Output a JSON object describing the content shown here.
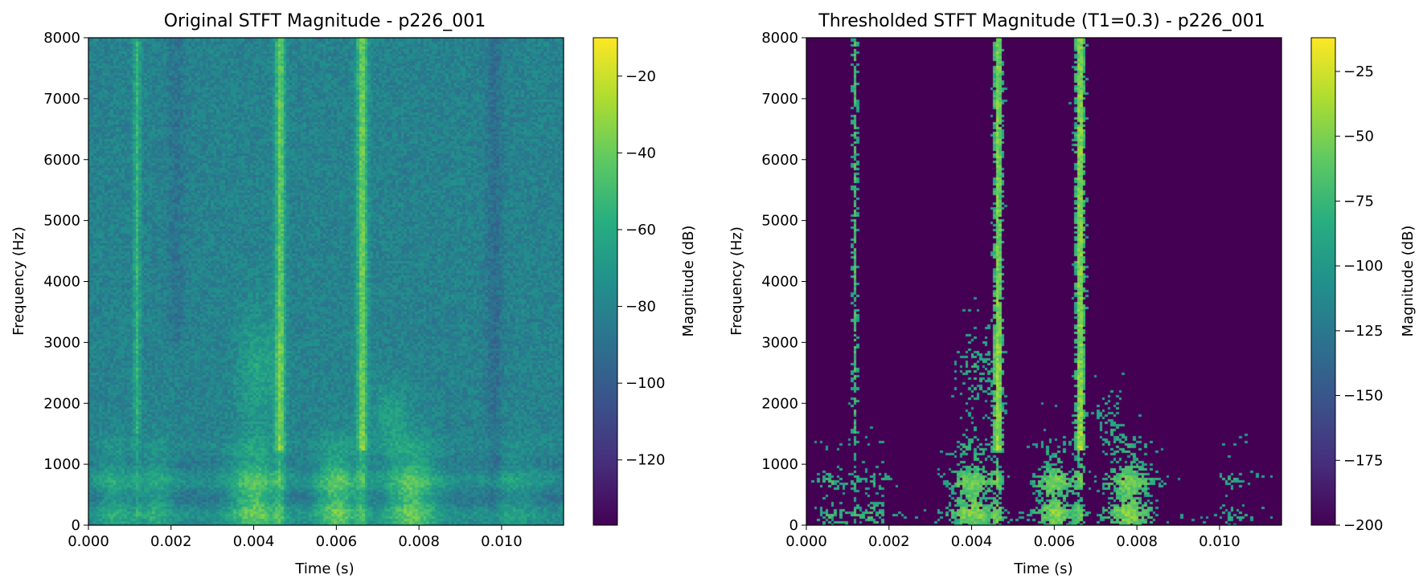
{
  "chart_data": [
    {
      "type": "heatmap",
      "title": "Original STFT Magnitude - p226_001",
      "xlabel": "Time (s)",
      "ylabel": "Frequency (Hz)",
      "xlim": [
        0.0,
        0.0115
      ],
      "ylim": [
        0,
        8000
      ],
      "xticks": [
        "0.000",
        "0.002",
        "0.004",
        "0.006",
        "0.008",
        "0.010"
      ],
      "yticks": [
        "0",
        "1000",
        "2000",
        "3000",
        "4000",
        "5000",
        "6000",
        "7000",
        "8000"
      ],
      "colorbar": {
        "label": "Magnitude (dB)",
        "range": [
          -137,
          -10
        ],
        "ticks": [
          "−20",
          "−40",
          "−60",
          "−80",
          "−100",
          "−120"
        ],
        "tick_values": [
          -20,
          -40,
          -60,
          -80,
          -100,
          -120
        ],
        "colormap": "viridis"
      },
      "thresholded": false
    },
    {
      "type": "heatmap",
      "title": "Thresholded STFT Magnitude (T1=0.3) - p226_001",
      "xlabel": "Time (s)",
      "ylabel": "Frequency (Hz)",
      "xlim": [
        0.0,
        0.0115
      ],
      "ylim": [
        0,
        8000
      ],
      "xticks": [
        "0.000",
        "0.002",
        "0.004",
        "0.006",
        "0.008",
        "0.010"
      ],
      "yticks": [
        "0",
        "1000",
        "2000",
        "3000",
        "4000",
        "5000",
        "6000",
        "7000",
        "8000"
      ],
      "colorbar": {
        "label": "Magnitude (dB)",
        "range": [
          -200,
          -12
        ],
        "ticks": [
          "−25",
          "−50",
          "−75",
          "−100",
          "−125",
          "−150",
          "−175",
          "−200"
        ],
        "tick_values": [
          -25,
          -50,
          -75,
          -100,
          -125,
          -150,
          -175,
          -200
        ],
        "colormap": "viridis"
      },
      "thresholded": true,
      "threshold_label": "T1=0.3"
    }
  ]
}
